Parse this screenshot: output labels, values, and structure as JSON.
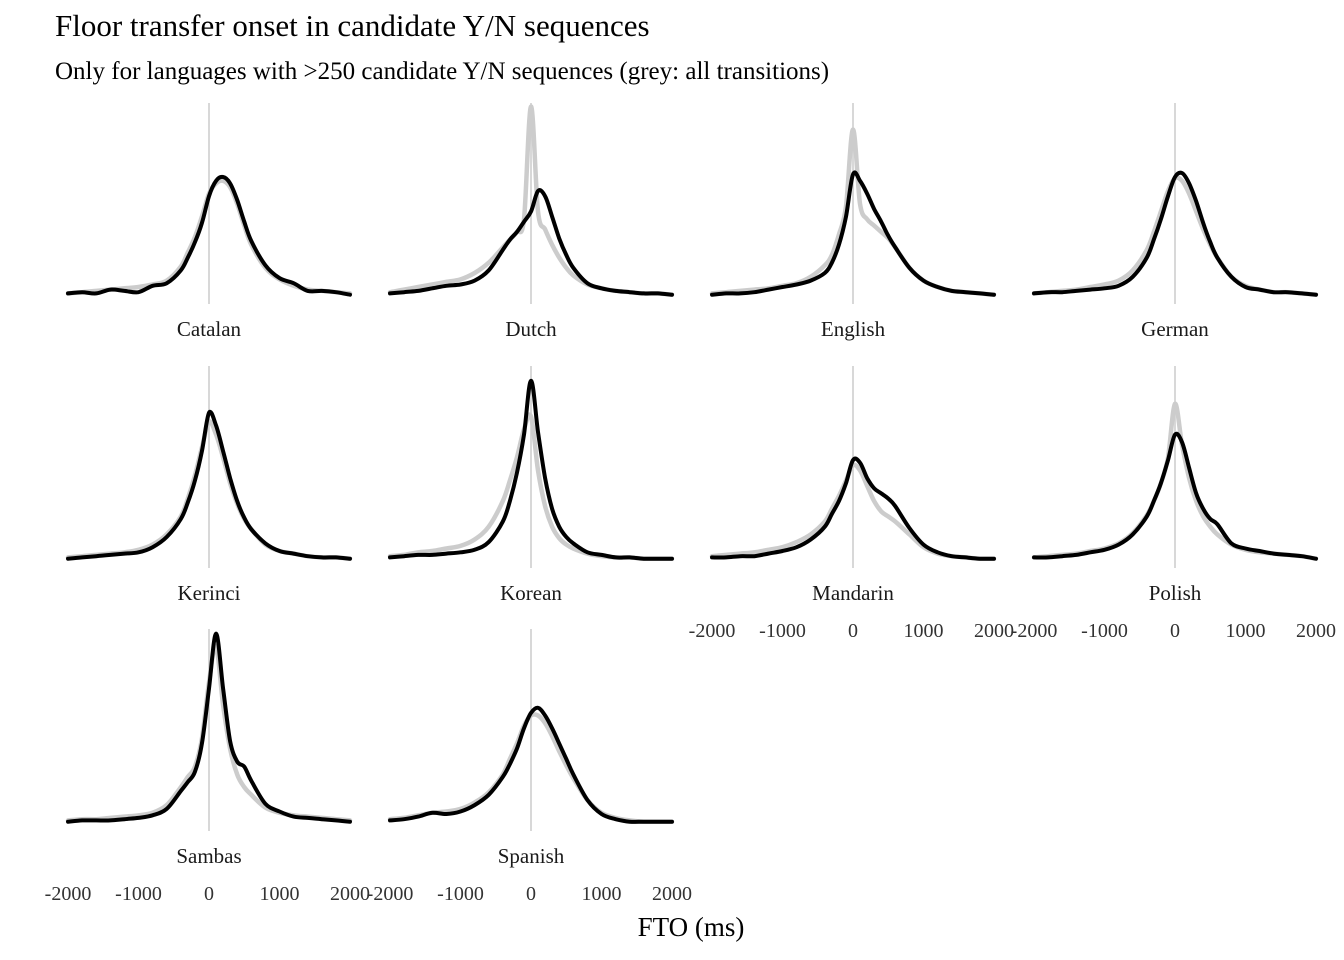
{
  "title": "Floor transfer onset in candidate Y/N sequences",
  "subtitle": "Only for languages with >250 candidate Y/N sequences (grey: all transitions)",
  "xlabel": "FTO (ms)",
  "colors": {
    "candidate": "#000000",
    "all_transitions": "#cccccc",
    "zero_line": "#cccccc"
  },
  "chart_data": {
    "type": "line",
    "title": "Floor transfer onset in candidate Y/N sequences",
    "subtitle": "Only for languages with >250 candidate Y/N sequences (grey: all transitions)",
    "xlabel": "FTO (ms)",
    "ylabel": "",
    "xlim": [
      -2000,
      2000
    ],
    "x_ticks": [
      -2000,
      -1000,
      0,
      1000,
      2000
    ],
    "x": [
      -2000,
      -1800,
      -1600,
      -1400,
      -1200,
      -1000,
      -800,
      -600,
      -400,
      -300,
      -200,
      -100,
      0,
      100,
      200,
      300,
      400,
      500,
      600,
      800,
      1000,
      1200,
      1400,
      1600,
      1800,
      2000
    ],
    "series_names": [
      "candidate Y/N sequences",
      "all transitions"
    ],
    "panels": [
      {
        "language": "Catalan",
        "candidate": [
          0.02,
          0.03,
          0.02,
          0.05,
          0.04,
          0.03,
          0.08,
          0.1,
          0.2,
          0.3,
          0.42,
          0.57,
          0.78,
          0.9,
          0.93,
          0.88,
          0.75,
          0.58,
          0.43,
          0.24,
          0.14,
          0.1,
          0.04,
          0.04,
          0.03,
          0.01
        ],
        "all": [
          0.02,
          0.03,
          0.04,
          0.05,
          0.06,
          0.07,
          0.09,
          0.12,
          0.23,
          0.34,
          0.46,
          0.62,
          0.8,
          0.88,
          0.9,
          0.85,
          0.72,
          0.55,
          0.4,
          0.22,
          0.13,
          0.08,
          0.05,
          0.04,
          0.03,
          0.02
        ]
      },
      {
        "language": "Dutch",
        "candidate": [
          0.02,
          0.03,
          0.04,
          0.06,
          0.08,
          0.09,
          0.12,
          0.2,
          0.36,
          0.44,
          0.5,
          0.58,
          0.66,
          0.82,
          0.78,
          0.62,
          0.45,
          0.32,
          0.22,
          0.1,
          0.06,
          0.04,
          0.03,
          0.02,
          0.02,
          0.01
        ],
        "all": [
          0.03,
          0.05,
          0.07,
          0.09,
          0.11,
          0.13,
          0.18,
          0.26,
          0.38,
          0.44,
          0.5,
          0.6,
          1.48,
          0.66,
          0.52,
          0.4,
          0.3,
          0.22,
          0.16,
          0.09,
          0.06,
          0.04,
          0.03,
          0.02,
          0.02,
          0.01
        ]
      },
      {
        "language": "English",
        "candidate": [
          0.01,
          0.02,
          0.02,
          0.03,
          0.05,
          0.07,
          0.09,
          0.12,
          0.18,
          0.26,
          0.4,
          0.62,
          0.95,
          0.9,
          0.8,
          0.68,
          0.58,
          0.47,
          0.38,
          0.22,
          0.12,
          0.07,
          0.04,
          0.03,
          0.02,
          0.01
        ],
        "all": [
          0.02,
          0.03,
          0.04,
          0.05,
          0.06,
          0.08,
          0.1,
          0.15,
          0.24,
          0.32,
          0.48,
          0.7,
          1.3,
          0.72,
          0.6,
          0.55,
          0.5,
          0.45,
          0.38,
          0.22,
          0.12,
          0.07,
          0.04,
          0.03,
          0.02,
          0.01
        ]
      },
      {
        "language": "German",
        "candidate": [
          0.02,
          0.03,
          0.03,
          0.04,
          0.05,
          0.06,
          0.08,
          0.15,
          0.3,
          0.44,
          0.6,
          0.78,
          0.93,
          0.96,
          0.88,
          0.74,
          0.57,
          0.42,
          0.3,
          0.15,
          0.07,
          0.05,
          0.03,
          0.03,
          0.02,
          0.01
        ],
        "all": [
          0.02,
          0.03,
          0.04,
          0.05,
          0.07,
          0.09,
          0.12,
          0.2,
          0.36,
          0.5,
          0.66,
          0.82,
          0.92,
          0.9,
          0.8,
          0.66,
          0.52,
          0.4,
          0.3,
          0.15,
          0.08,
          0.05,
          0.03,
          0.03,
          0.02,
          0.01
        ]
      },
      {
        "language": "Kerinci",
        "candidate": [
          0.01,
          0.02,
          0.03,
          0.04,
          0.05,
          0.06,
          0.1,
          0.18,
          0.32,
          0.45,
          0.62,
          0.85,
          1.15,
          1.05,
          0.85,
          0.64,
          0.46,
          0.33,
          0.24,
          0.13,
          0.07,
          0.05,
          0.03,
          0.02,
          0.02,
          0.01
        ],
        "all": [
          0.02,
          0.03,
          0.04,
          0.05,
          0.06,
          0.08,
          0.12,
          0.2,
          0.34,
          0.48,
          0.66,
          0.88,
          1.08,
          0.98,
          0.8,
          0.6,
          0.44,
          0.32,
          0.24,
          0.12,
          0.07,
          0.05,
          0.03,
          0.02,
          0.02,
          0.01
        ]
      },
      {
        "language": "Korean",
        "candidate": [
          0.02,
          0.03,
          0.04,
          0.04,
          0.05,
          0.06,
          0.08,
          0.14,
          0.3,
          0.46,
          0.68,
          0.98,
          1.4,
          1.0,
          0.64,
          0.4,
          0.26,
          0.18,
          0.13,
          0.06,
          0.04,
          0.02,
          0.02,
          0.01,
          0.01,
          0.01
        ],
        "all": [
          0.03,
          0.04,
          0.06,
          0.07,
          0.09,
          0.11,
          0.16,
          0.26,
          0.46,
          0.62,
          0.8,
          1.02,
          1.12,
          0.7,
          0.42,
          0.26,
          0.17,
          0.12,
          0.09,
          0.05,
          0.03,
          0.02,
          0.02,
          0.01,
          0.01,
          0.01
        ]
      },
      {
        "language": "Mandarin",
        "candidate": [
          0.02,
          0.02,
          0.03,
          0.03,
          0.05,
          0.07,
          0.1,
          0.16,
          0.26,
          0.36,
          0.46,
          0.6,
          0.78,
          0.76,
          0.64,
          0.56,
          0.52,
          0.48,
          0.42,
          0.25,
          0.12,
          0.06,
          0.03,
          0.02,
          0.01,
          0.01
        ],
        "all": [
          0.03,
          0.04,
          0.05,
          0.06,
          0.08,
          0.1,
          0.14,
          0.2,
          0.3,
          0.4,
          0.5,
          0.62,
          0.74,
          0.7,
          0.58,
          0.46,
          0.38,
          0.34,
          0.3,
          0.2,
          0.1,
          0.05,
          0.03,
          0.02,
          0.01,
          0.01
        ]
      },
      {
        "language": "Polish",
        "candidate": [
          0.02,
          0.02,
          0.03,
          0.04,
          0.06,
          0.08,
          0.12,
          0.2,
          0.34,
          0.46,
          0.6,
          0.78,
          0.98,
          0.92,
          0.72,
          0.52,
          0.4,
          0.32,
          0.28,
          0.13,
          0.09,
          0.07,
          0.05,
          0.04,
          0.03,
          0.01
        ],
        "all": [
          0.02,
          0.03,
          0.04,
          0.05,
          0.07,
          0.09,
          0.13,
          0.21,
          0.35,
          0.46,
          0.6,
          0.8,
          1.22,
          0.9,
          0.64,
          0.46,
          0.34,
          0.26,
          0.2,
          0.12,
          0.08,
          0.06,
          0.05,
          0.04,
          0.03,
          0.01
        ]
      },
      {
        "language": "Sambas",
        "candidate": [
          0.01,
          0.02,
          0.02,
          0.02,
          0.03,
          0.04,
          0.06,
          0.11,
          0.25,
          0.32,
          0.4,
          0.62,
          1.05,
          1.48,
          1.05,
          0.64,
          0.48,
          0.44,
          0.33,
          0.15,
          0.09,
          0.05,
          0.04,
          0.03,
          0.02,
          0.01
        ],
        "all": [
          0.02,
          0.03,
          0.03,
          0.04,
          0.05,
          0.06,
          0.08,
          0.14,
          0.28,
          0.36,
          0.44,
          0.66,
          1.1,
          1.38,
          0.92,
          0.58,
          0.38,
          0.28,
          0.22,
          0.12,
          0.08,
          0.06,
          0.05,
          0.04,
          0.03,
          0.02
        ]
      },
      {
        "language": "Spanish",
        "candidate": [
          0.02,
          0.03,
          0.05,
          0.08,
          0.07,
          0.09,
          0.14,
          0.22,
          0.36,
          0.46,
          0.58,
          0.74,
          0.86,
          0.9,
          0.84,
          0.74,
          0.62,
          0.5,
          0.38,
          0.18,
          0.07,
          0.03,
          0.01,
          0.01,
          0.01,
          0.01
        ],
        "all": [
          0.03,
          0.04,
          0.06,
          0.08,
          0.09,
          0.11,
          0.16,
          0.24,
          0.38,
          0.5,
          0.62,
          0.76,
          0.84,
          0.84,
          0.78,
          0.68,
          0.56,
          0.45,
          0.35,
          0.18,
          0.08,
          0.04,
          0.02,
          0.01,
          0.01,
          0.01
        ]
      }
    ]
  }
}
